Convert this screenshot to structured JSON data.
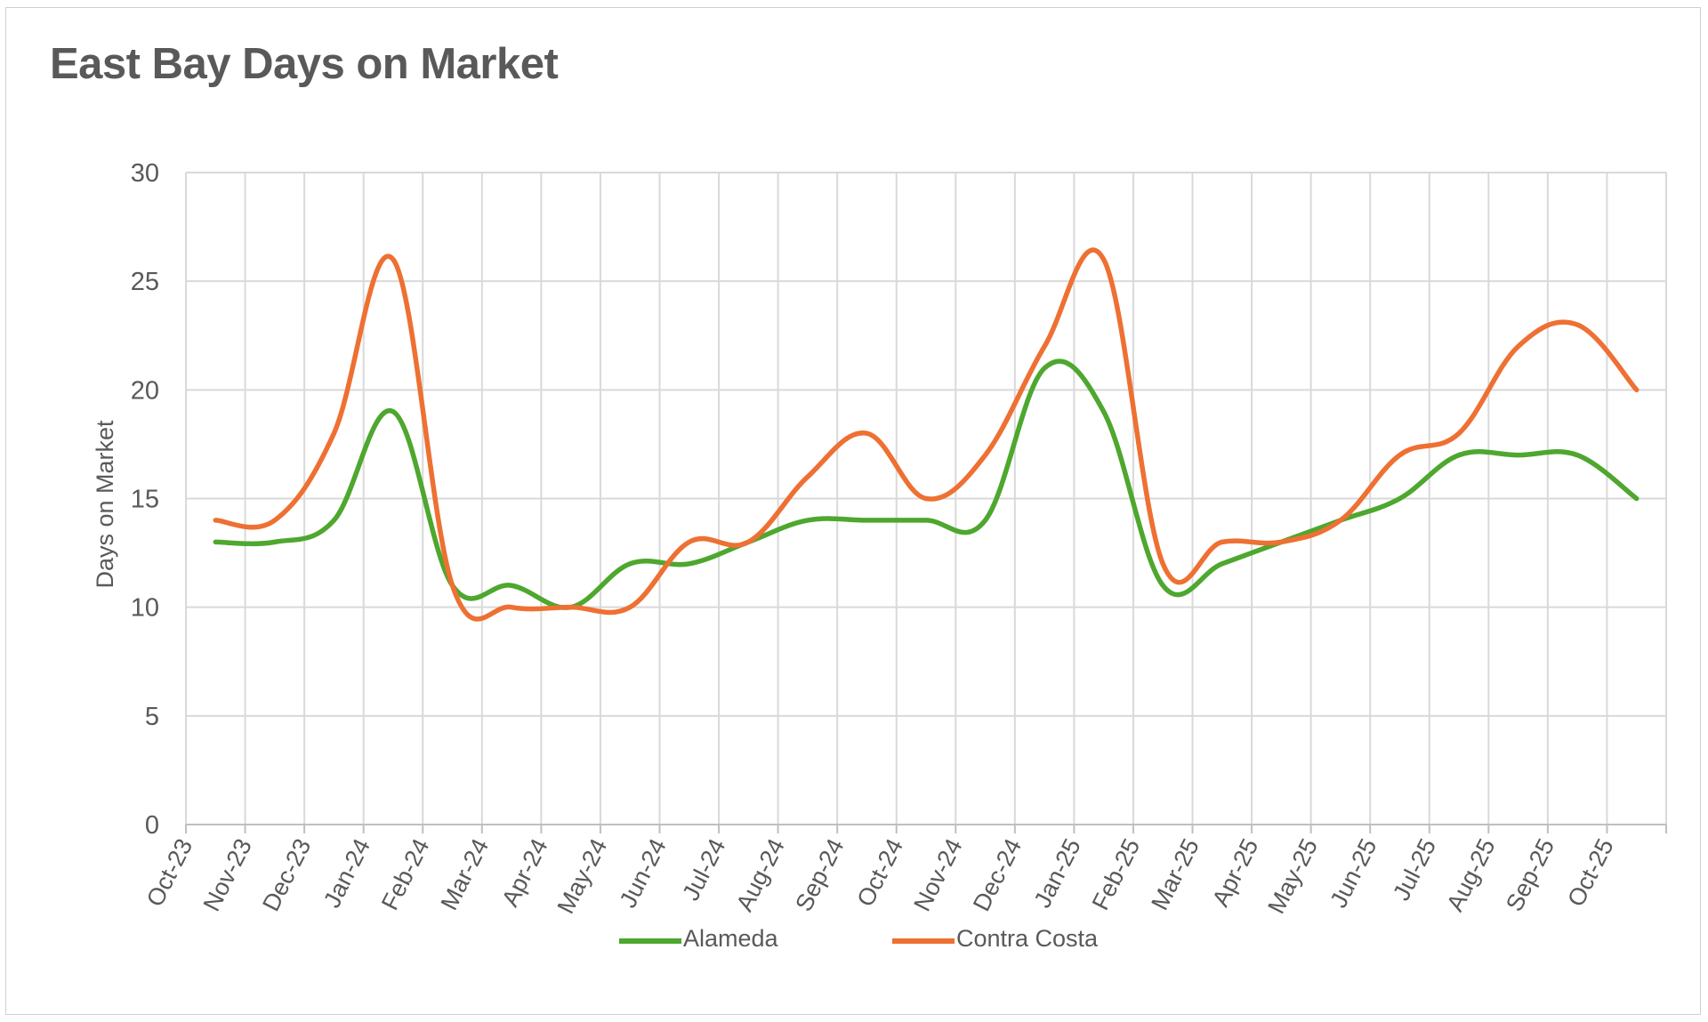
{
  "chart_data": {
    "type": "line",
    "title": "East Bay Days on Market",
    "ylabel": "Days on Market",
    "xlabel": "",
    "ylim": [
      0,
      30
    ],
    "yticks": [
      0,
      5,
      10,
      15,
      20,
      25,
      30
    ],
    "grid": true,
    "smooth": true,
    "legend": "bottom",
    "categories": [
      "Oct-23",
      "Nov-23",
      "Dec-23",
      "Jan-24",
      "Feb-24",
      "Mar-24",
      "Apr-24",
      "May-24",
      "Jun-24",
      "Jul-24",
      "Aug-24",
      "Sep-24",
      "Oct-24",
      "Nov-24",
      "Dec-24",
      "Jan-25",
      "Feb-25",
      "Mar-25",
      "Apr-25",
      "May-25",
      "Jun-25",
      "Jul-25",
      "Aug-25",
      "Sep-25",
      "Oct-25"
    ],
    "series": [
      {
        "name": "Alameda",
        "color": "#4ea72e",
        "values": [
          13,
          13,
          14,
          19,
          11,
          11,
          10,
          12,
          12,
          13,
          14,
          14,
          14,
          14,
          21,
          19,
          11,
          12,
          13,
          14,
          15,
          17,
          17,
          17,
          15
        ]
      },
      {
        "name": "Contra Costa",
        "color": "#ee7032",
        "values": [
          14,
          14,
          18,
          26,
          11,
          10,
          10,
          10,
          13,
          13,
          16,
          18,
          15,
          17,
          22,
          26,
          12,
          13,
          13,
          14,
          17,
          18,
          22,
          23,
          20
        ]
      }
    ]
  }
}
